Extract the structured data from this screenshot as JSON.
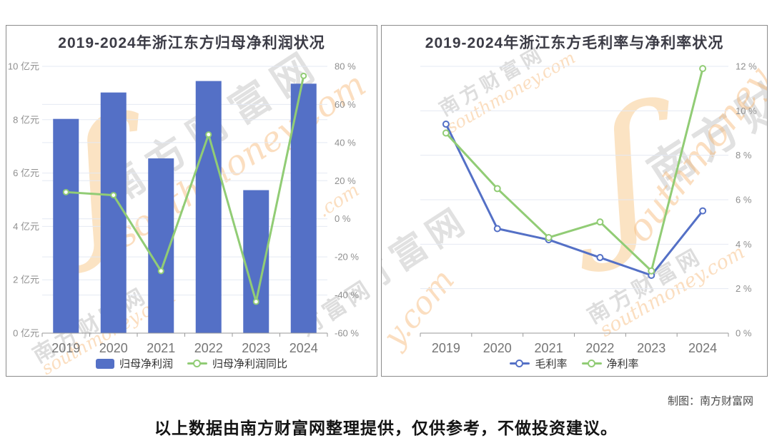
{
  "chart_data": [
    {
      "type": "bar",
      "title": "2019-2024年浙江东方归母净利润状况",
      "categories": [
        "2019",
        "2020",
        "2021",
        "2022",
        "2023",
        "2024"
      ],
      "left_axis": {
        "unit": "亿元",
        "min": 0,
        "max": 10,
        "step": 2,
        "labels": [
          "10 亿元",
          "8 亿元",
          "6 亿元",
          "4 亿元",
          "2 亿元",
          "0 亿元"
        ]
      },
      "right_axis": {
        "unit": "%",
        "min": -60,
        "max": 80,
        "step": 20,
        "labels": [
          "80 %",
          "60 %",
          "40 %",
          "20 %",
          "0 %",
          "-20 %",
          "-40 %",
          "-60 %"
        ]
      },
      "grid": true,
      "legend_position": "bottom",
      "series": [
        {
          "name": "归母净利润",
          "type": "bar",
          "axis": "left",
          "color": "#5470C6",
          "values": [
            8.03,
            9.02,
            6.55,
            9.45,
            5.36,
            9.35
          ]
        },
        {
          "name": "归母净利润同比",
          "type": "line",
          "axis": "right",
          "color": "#91CC75",
          "values": [
            14.0,
            12.4,
            -27.4,
            44.2,
            -43.5,
            75.0
          ]
        }
      ]
    },
    {
      "type": "line",
      "title": "2019-2024年浙江东方毛利率与净利率状况",
      "categories": [
        "2019",
        "2020",
        "2021",
        "2022",
        "2023",
        "2024"
      ],
      "right_axis": {
        "unit": "%",
        "min": 0,
        "max": 12,
        "step": 2,
        "labels": [
          "12 %",
          "10 %",
          "8 %",
          "6 %",
          "4 %",
          "2 %",
          "0 %"
        ]
      },
      "grid": true,
      "legend_position": "bottom",
      "series": [
        {
          "name": "毛利率",
          "type": "line",
          "axis": "right",
          "color": "#5470C6",
          "values": [
            9.4,
            4.7,
            4.2,
            3.4,
            2.6,
            5.5
          ]
        },
        {
          "name": "净利率",
          "type": "line",
          "axis": "right",
          "color": "#91CC75",
          "values": [
            9.0,
            6.5,
            4.3,
            5.0,
            2.8,
            11.9
          ]
        }
      ]
    }
  ],
  "watermark": {
    "cjk": "南方财富网",
    "cjk_short": "财富网",
    "en": "southmoney.com",
    "en_mid": "outhmoney",
    "en_short": ".com",
    "en_tail": "y.com",
    "swirl": "ʃ"
  },
  "footer": {
    "credit": "制图：南方财富网",
    "disclaimer": "以上数据由南方财富网整理提供，仅供参考，不做投资建议。"
  },
  "colors": {
    "bar_blue": "#5470C6",
    "line_green": "#91CC75",
    "grid": "#E4E9F3",
    "axis": "#999999",
    "tick_label": "#8f8f8f",
    "x_label": "#757575",
    "watermark_orange": "#F6B26B",
    "watermark_gray": "#C9C9C9"
  }
}
